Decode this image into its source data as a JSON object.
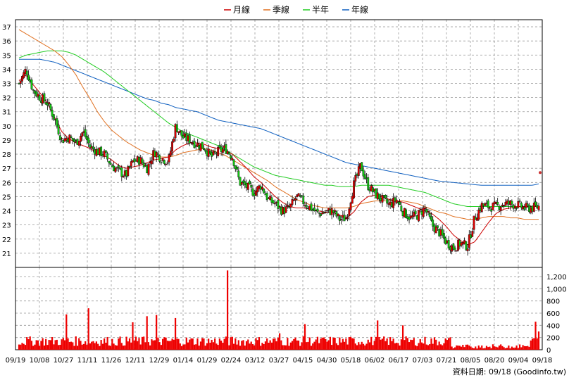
{
  "chart_data": {
    "type": "candlestick_with_moving_averages_and_volume",
    "legend": [
      {
        "label": "月線",
        "color": "#cc0000"
      },
      {
        "label": "季線",
        "color": "#e07020"
      },
      {
        "label": "半年",
        "color": "#22cc22"
      },
      {
        "label": "年線",
        "color": "#1060c0"
      }
    ],
    "price_axis": {
      "min": 20,
      "max": 37.5,
      "ticks": [
        21,
        22,
        23,
        24,
        25,
        26,
        27,
        28,
        29,
        30,
        31,
        32,
        33,
        34,
        35,
        36,
        37
      ]
    },
    "volume_axis": {
      "min": 0,
      "max": 1350,
      "ticks": [
        {
          "v": 0,
          "label": "0"
        },
        {
          "v": 200,
          "label": "200"
        },
        {
          "v": 400,
          "label": "400"
        },
        {
          "v": 600,
          "label": "600"
        },
        {
          "v": 800,
          "label": "800"
        },
        {
          "v": 1000,
          "label": "1,000"
        },
        {
          "v": 1200,
          "label": "1,200"
        }
      ]
    },
    "x_labels": [
      "09/19",
      "10/08",
      "10/27",
      "11/11",
      "11/26",
      "12/11",
      "12/29",
      "01/14",
      "01/29",
      "02/24",
      "03/12",
      "03/27",
      "04/15",
      "04/30",
      "05/18",
      "06/02",
      "06/17",
      "07/03",
      "07/21",
      "08/05",
      "08/20",
      "09/04",
      "09/18"
    ],
    "close_anchors": [
      33.0,
      34.0,
      32.5,
      32.0,
      31.6,
      30.5,
      29.0,
      29.2,
      28.8,
      29.6,
      28.5,
      28.2,
      28.0,
      27.2,
      26.8,
      26.5,
      27.5,
      27.6,
      27.0,
      28.2,
      27.7,
      27.5,
      30.0,
      29.2,
      29.0,
      28.7,
      28.5,
      27.8,
      28.2,
      28.4,
      27.8,
      26.0,
      25.7,
      25.3,
      25.8,
      24.8,
      24.5,
      24.0,
      24.2,
      25.0,
      24.6,
      24.2,
      23.8,
      23.9,
      24.0,
      23.4,
      23.5,
      25.8,
      27.2,
      25.8,
      25.2,
      24.8,
      24.4,
      24.8,
      23.9,
      23.5,
      23.7,
      24.2,
      23.0,
      22.5,
      21.8,
      21.4,
      21.7,
      21.5,
      23.5,
      24.4,
      24.3,
      24.3,
      24.5,
      24.5,
      24.4,
      24.2,
      24.2,
      24.3
    ],
    "ma_month": [
      33.2,
      33.6,
      32.9,
      32.3,
      31.6,
      30.6,
      29.6,
      29.1,
      28.8,
      28.6,
      28.4,
      28.1,
      27.9,
      27.6,
      27.2,
      27.0,
      27.1,
      27.2,
      27.4,
      27.6,
      27.7,
      27.8,
      28.3,
      28.6,
      28.8,
      28.8,
      28.7,
      28.5,
      28.4,
      28.2,
      28.0,
      27.5,
      27.0,
      26.4,
      26.0,
      25.5,
      25.0,
      24.6,
      24.3,
      24.2,
      24.2,
      24.1,
      24.0,
      23.9,
      23.9,
      23.7,
      23.5,
      23.9,
      24.6,
      25.0,
      25.1,
      25.0,
      24.8,
      24.7,
      24.6,
      24.4,
      24.2,
      24.0,
      23.8,
      23.4,
      22.9,
      22.3,
      21.9,
      21.6,
      21.8,
      22.5,
      23.2,
      23.8,
      24.1,
      24.2,
      24.3,
      24.3,
      24.3,
      24.3
    ],
    "ma_quarter": [
      36.8,
      36.5,
      36.2,
      35.9,
      35.6,
      35.3,
      34.9,
      34.3,
      33.6,
      32.7,
      31.9,
      31.0,
      30.3,
      29.7,
      29.3,
      28.9,
      28.6,
      28.3,
      28.1,
      27.9,
      27.8,
      27.8,
      27.9,
      28.1,
      28.2,
      28.3,
      28.4,
      28.3,
      28.1,
      27.9,
      27.6,
      27.3,
      27.0,
      26.7,
      26.4,
      26.1,
      25.7,
      25.4,
      25.1,
      24.8,
      24.6,
      24.4,
      24.3,
      24.2,
      24.2,
      24.2,
      24.2,
      24.3,
      24.5,
      24.6,
      24.7,
      24.7,
      24.7,
      24.7,
      24.7,
      24.6,
      24.5,
      24.3,
      24.1,
      23.9,
      23.8,
      23.6,
      23.5,
      23.4,
      23.4,
      23.5,
      23.6,
      23.6,
      23.6,
      23.5,
      23.5,
      23.4,
      23.4,
      23.4
    ],
    "ma_half": [
      34.8,
      35.0,
      35.1,
      35.2,
      35.3,
      35.3,
      35.3,
      35.2,
      35.0,
      34.7,
      34.4,
      34.1,
      33.8,
      33.4,
      33.0,
      32.6,
      32.2,
      31.8,
      31.4,
      31.0,
      30.6,
      30.2,
      29.9,
      29.6,
      29.4,
      29.2,
      29.0,
      28.8,
      28.6,
      28.3,
      28.0,
      27.7,
      27.4,
      27.1,
      26.9,
      26.7,
      26.5,
      26.4,
      26.3,
      26.2,
      26.1,
      26.0,
      25.9,
      25.8,
      25.8,
      25.7,
      25.7,
      25.7,
      25.8,
      25.8,
      25.8,
      25.8,
      25.8,
      25.7,
      25.6,
      25.5,
      25.4,
      25.3,
      25.1,
      24.9,
      24.7,
      24.5,
      24.4,
      24.3,
      24.3,
      24.3,
      24.3,
      24.3,
      24.3,
      24.3,
      24.3,
      24.3,
      24.3,
      24.3
    ],
    "ma_year": [
      34.7,
      34.7,
      34.7,
      34.7,
      34.6,
      34.5,
      34.3,
      34.1,
      33.9,
      33.7,
      33.5,
      33.3,
      33.1,
      32.9,
      32.7,
      32.5,
      32.3,
      32.1,
      31.9,
      31.8,
      31.6,
      31.5,
      31.3,
      31.2,
      31.1,
      31.0,
      30.8,
      30.6,
      30.4,
      30.3,
      30.2,
      30.1,
      30.0,
      29.9,
      29.8,
      29.6,
      29.4,
      29.2,
      29.0,
      28.8,
      28.6,
      28.4,
      28.2,
      28.0,
      27.8,
      27.6,
      27.4,
      27.3,
      27.2,
      27.1,
      27.0,
      26.9,
      26.8,
      26.7,
      26.6,
      26.5,
      26.4,
      26.3,
      26.2,
      26.1,
      26.05,
      26.0,
      25.95,
      25.9,
      25.85,
      25.8,
      25.8,
      25.8,
      25.8,
      25.8,
      25.8,
      25.8,
      25.8,
      25.9
    ],
    "volume_spikes": [
      {
        "pos": 0.5,
        "value": 270
      },
      {
        "pos": 0.91,
        "value": 300
      },
      {
        "pos": 0.8,
        "value": 450
      },
      {
        "pos": 0.39,
        "value": 580
      },
      {
        "pos": 0.495,
        "value": 560
      },
      {
        "pos": 0.245,
        "value": 550
      },
      {
        "pos": 0.45,
        "value": 680
      },
      {
        "pos": 1.0,
        "value": 600
      },
      {
        "pos": 0.44,
        "value": 680
      },
      {
        "pos": 0.55,
        "value": 400
      },
      {
        "pos": 0.67,
        "value": 480
      }
    ],
    "last_marker": 26.7,
    "footer": "資料日期: 09/18  (Goodinfo.tw)"
  }
}
